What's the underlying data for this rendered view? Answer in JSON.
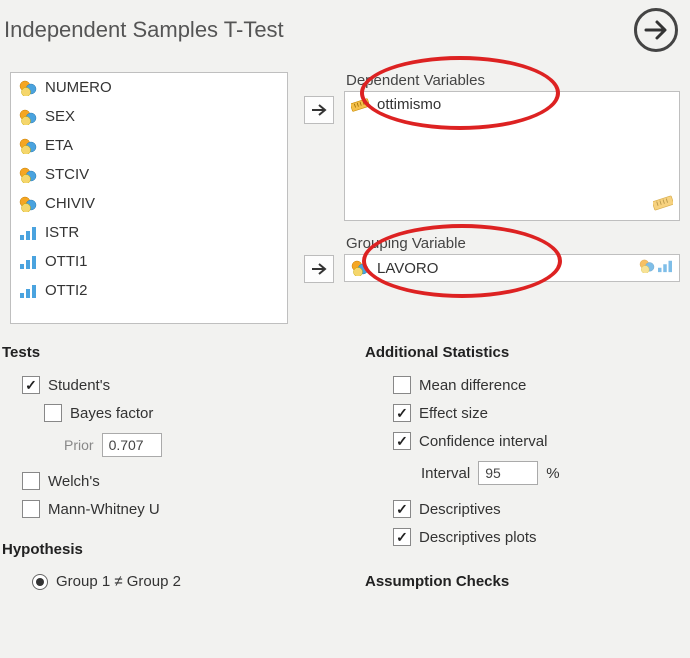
{
  "title": "Independent Samples T-Test",
  "variables": [
    {
      "name": "NUMERO",
      "type": "nominal"
    },
    {
      "name": "SEX",
      "type": "nominal"
    },
    {
      "name": "ETA",
      "type": "nominal"
    },
    {
      "name": "STCIV",
      "type": "nominal"
    },
    {
      "name": "CHIVIV",
      "type": "nominal"
    },
    {
      "name": "ISTR",
      "type": "ordinal"
    },
    {
      "name": "OTTI1",
      "type": "ordinal"
    },
    {
      "name": "OTTI2",
      "type": "ordinal"
    }
  ],
  "fields": {
    "dependent": {
      "label": "Dependent Variables",
      "items": [
        {
          "name": "ottimismo",
          "type": "scale"
        }
      ]
    },
    "grouping": {
      "label": "Grouping Variable",
      "value": {
        "name": "LAVORO",
        "type": "nominal"
      }
    }
  },
  "tests": {
    "heading": "Tests",
    "students": {
      "label": "Student's",
      "checked": true
    },
    "bayes": {
      "label": "Bayes factor",
      "checked": false
    },
    "prior": {
      "label": "Prior",
      "value": "0.707"
    },
    "welch": {
      "label": "Welch's",
      "checked": false
    },
    "mannwhitney": {
      "label": "Mann-Whitney U",
      "checked": false
    }
  },
  "addstats": {
    "heading": "Additional Statistics",
    "meandiff": {
      "label": "Mean difference",
      "checked": false
    },
    "effectsize": {
      "label": "Effect size",
      "checked": true
    },
    "ci": {
      "label": "Confidence interval",
      "checked": true
    },
    "interval": {
      "label": "Interval",
      "value": "95",
      "suffix": "%"
    },
    "desc": {
      "label": "Descriptives",
      "checked": true
    },
    "descplot": {
      "label": "Descriptives plots",
      "checked": true
    }
  },
  "hypothesis": {
    "heading": "Hypothesis",
    "neq": {
      "label": "Group 1 ≠ Group 2",
      "checked": true
    }
  },
  "assumption": {
    "heading": "Assumption Checks"
  },
  "colors": {
    "nominal_a": "#f5a623",
    "nominal_b": "#4aa3df",
    "ordinal": "#4aa3df",
    "scale": "#f5a623",
    "red": "#d22"
  }
}
